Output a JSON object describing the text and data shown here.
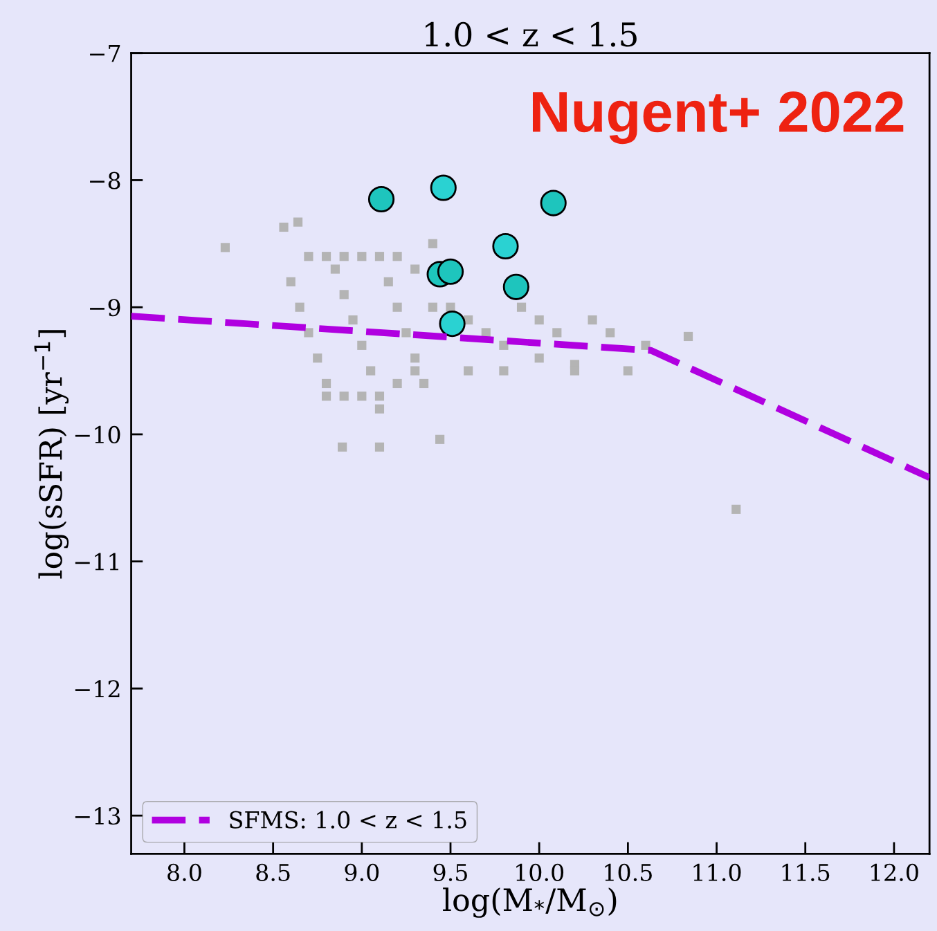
{
  "chart_data": {
    "type": "scatter",
    "title": "1.0 < z < 1.5",
    "xlabel": "log(M$_{*}$/M$_{⊙}$)",
    "ylabel": "log(sSFR) [yr$^{−1}$]",
    "xlim": [
      7.7,
      12.2
    ],
    "ylim": [
      -13.3,
      -7
    ],
    "xticks": [
      {
        "value": 8.0,
        "label": "8.0"
      },
      {
        "value": 8.5,
        "label": "8.5"
      },
      {
        "value": 9.0,
        "label": "9.0"
      },
      {
        "value": 9.5,
        "label": "9.5"
      },
      {
        "value": 10.0,
        "label": "10.0"
      },
      {
        "value": 10.5,
        "label": "10.5"
      },
      {
        "value": 11.0,
        "label": "11.0"
      },
      {
        "value": 11.5,
        "label": "11.5"
      },
      {
        "value": 12.0,
        "label": "12.0"
      }
    ],
    "yticks": [
      {
        "value": -13,
        "label": "−13"
      },
      {
        "value": -12,
        "label": "−12"
      },
      {
        "value": -11,
        "label": "−11"
      },
      {
        "value": -10,
        "label": "−10"
      },
      {
        "value": -9,
        "label": "−9"
      },
      {
        "value": -8,
        "label": "−8"
      },
      {
        "value": -7,
        "label": "−7"
      }
    ],
    "grid": false,
    "legend": "bottom left",
    "annotations": [
      "Nugent+ 2022"
    ],
    "series": [
      {
        "type": "scatter",
        "marker": "square",
        "color": "#b4b4b4",
        "x": [
          8.23,
          8.56,
          8.64,
          8.6,
          8.65,
          8.7,
          8.75,
          8.8,
          8.85,
          8.9,
          8.95,
          9.0,
          9.05,
          9.1,
          9.15,
          9.2,
          9.25,
          9.3,
          9.35,
          9.4,
          8.7,
          8.8,
          8.9,
          9.0,
          9.1,
          9.2,
          9.3,
          9.4,
          9.5,
          9.6,
          9.7,
          9.8,
          9.9,
          10.0,
          10.1,
          10.2,
          10.3,
          10.4,
          10.5,
          10.6,
          8.8,
          8.9,
          9.0,
          9.1,
          9.2,
          9.3,
          9.6,
          9.8,
          10.0,
          10.2,
          8.89,
          9.1,
          9.44,
          10.84,
          11.11
        ],
        "values": [
          -8.53,
          -8.37,
          -8.33,
          -8.8,
          -9.0,
          -9.2,
          -9.4,
          -9.6,
          -8.7,
          -8.9,
          -9.1,
          -9.3,
          -9.5,
          -9.8,
          -8.8,
          -9.0,
          -9.2,
          -9.4,
          -9.6,
          -9.0,
          -8.6,
          -8.6,
          -8.6,
          -8.6,
          -8.6,
          -8.6,
          -8.7,
          -8.5,
          -9.0,
          -9.1,
          -9.2,
          -9.3,
          -9.0,
          -9.1,
          -9.2,
          -9.45,
          -9.1,
          -9.2,
          -9.5,
          -9.3,
          -9.7,
          -9.7,
          -9.7,
          -9.7,
          -9.6,
          -9.5,
          -9.5,
          -9.5,
          -9.4,
          -9.5,
          -10.1,
          -10.1,
          -10.04,
          -9.23,
          -10.59
        ]
      },
      {
        "type": "scatter",
        "marker": "circle",
        "color": "#1ec5bd",
        "x": [
          9.11,
          10.08,
          9.44,
          9.5,
          9.87
        ],
        "values": [
          -8.15,
          -8.18,
          -8.74,
          -8.72,
          -8.84
        ]
      },
      {
        "type": "scatter",
        "marker": "circle",
        "color": "#2ad2d2",
        "x": [
          9.46,
          9.81,
          9.51
        ],
        "values": [
          -8.06,
          -8.52,
          -9.13
        ]
      },
      {
        "type": "line",
        "name": "SFMS: 1.0 < z < 1.5",
        "color": "#b000e0",
        "line_style": "dashed",
        "x": [
          7.7,
          10.63,
          12.2
        ],
        "values": [
          -9.07,
          -9.34,
          -10.34
        ]
      }
    ]
  }
}
